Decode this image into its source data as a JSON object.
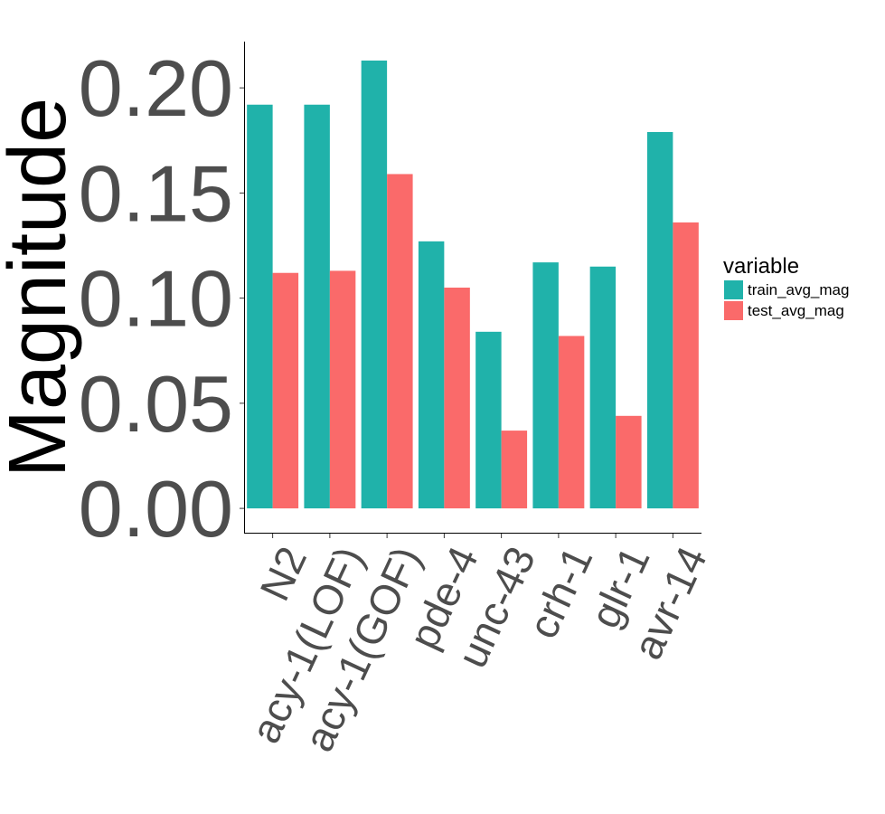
{
  "chart_data": {
    "type": "bar",
    "title": "",
    "xlabel": "",
    "ylabel": "Magnitude",
    "categories": [
      "N2",
      "acy-1(LOF)",
      "acy-1(GOF)",
      "pde-4",
      "unc-43",
      "crh-1",
      "glr-1",
      "avr-14"
    ],
    "series": [
      {
        "name": "train_avg_mag",
        "color": "#20b2aa",
        "values": [
          0.192,
          0.192,
          0.213,
          0.127,
          0.084,
          0.117,
          0.115,
          0.179
        ]
      },
      {
        "name": "test_avg_mag",
        "color": "#fa6a6a",
        "values": [
          0.112,
          0.113,
          0.159,
          0.105,
          0.037,
          0.082,
          0.044,
          0.136
        ]
      }
    ],
    "yticks": [
      "0.00",
      "0.05",
      "0.10",
      "0.15",
      "0.20"
    ],
    "ylim": [
      -0.012,
      0.222
    ],
    "grid": false,
    "legend": {
      "title": "variable",
      "position": "right"
    }
  }
}
